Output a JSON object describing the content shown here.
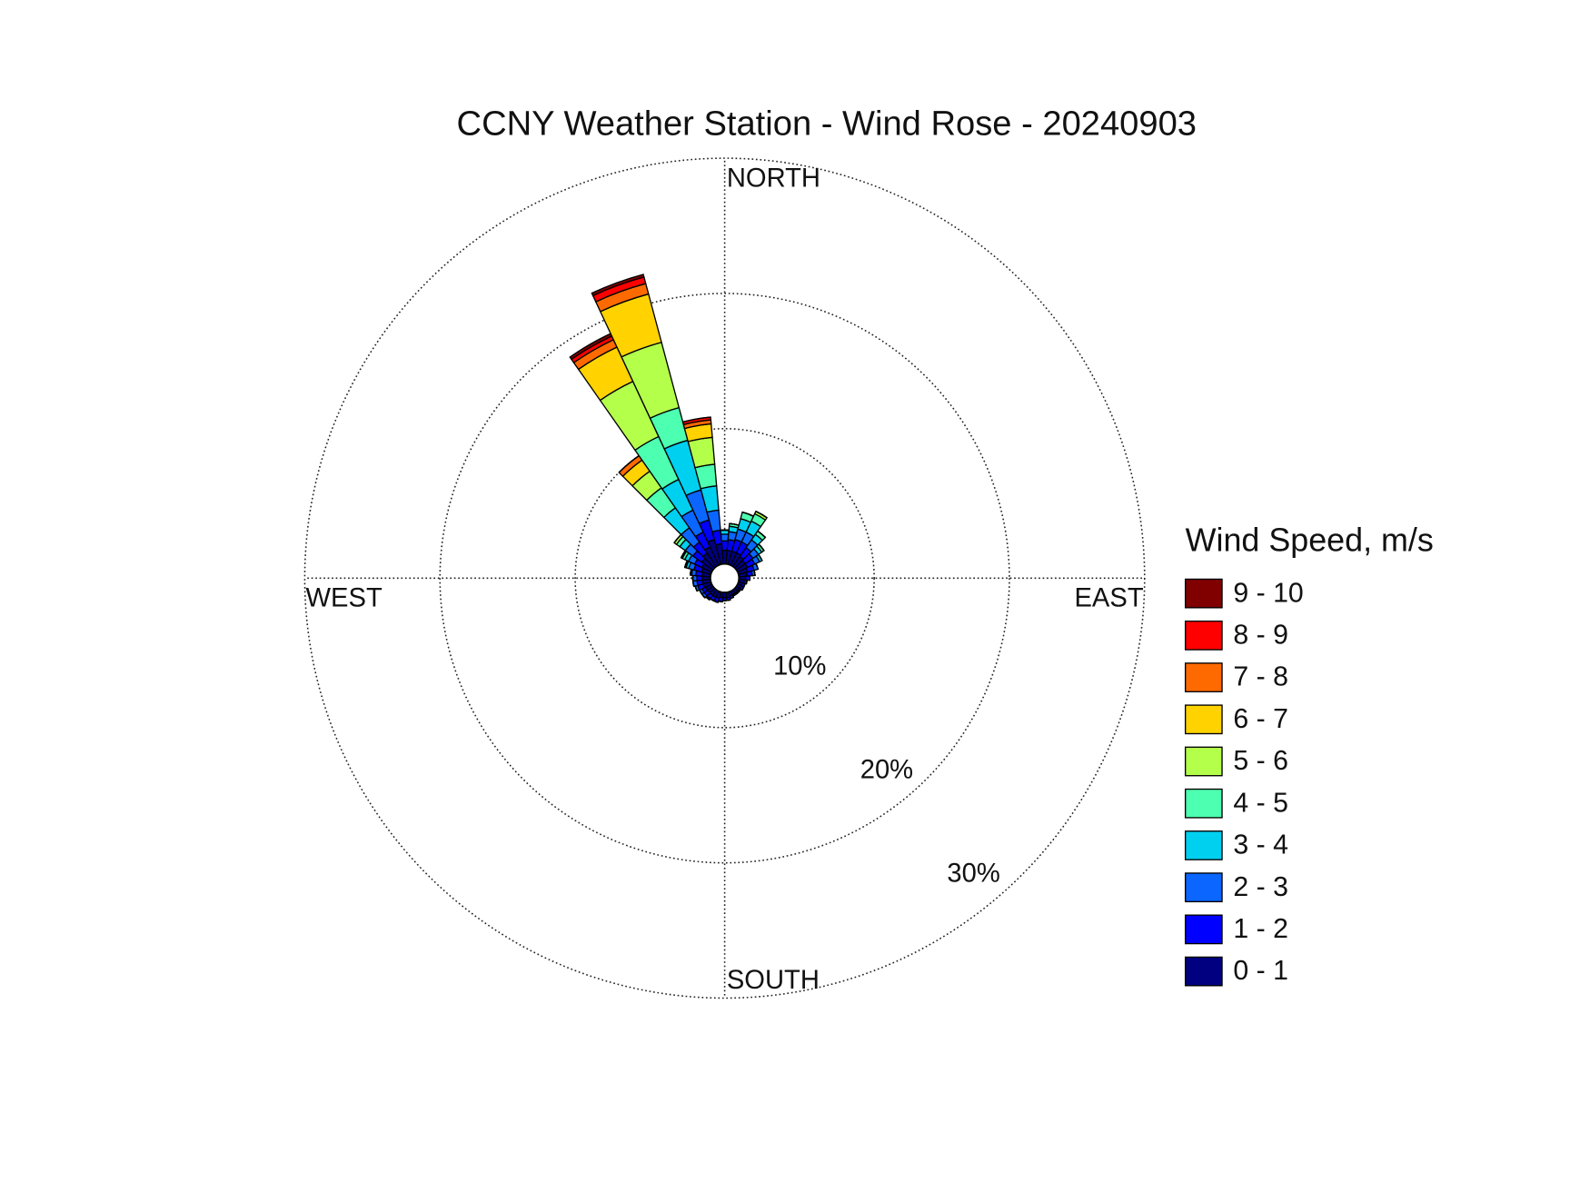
{
  "chart_data": {
    "type": "windrose",
    "title": "CCNY Weather Station - Wind Rose - 20240903",
    "compass_labels": {
      "north": "NORTH",
      "east": "EAST",
      "south": "SOUTH",
      "west": "WEST"
    },
    "legend_title": "Wind Speed, m/s",
    "directions": [
      0,
      10,
      20,
      30,
      40,
      50,
      60,
      70,
      80,
      90,
      100,
      110,
      120,
      130,
      140,
      150,
      160,
      170,
      180,
      190,
      200,
      210,
      220,
      230,
      240,
      250,
      260,
      270,
      280,
      290,
      300,
      310,
      320,
      330,
      340,
      350
    ],
    "rlim": [
      0,
      30
    ],
    "rticks": [
      {
        "value": 10,
        "label": "10%"
      },
      {
        "value": 20,
        "label": "20%"
      },
      {
        "value": 30,
        "label": "30%"
      }
    ],
    "grid": true,
    "series": [
      {
        "name": "0 - 1",
        "color": "#000080",
        "values": [
          1.0,
          1.0,
          1.0,
          1.0,
          0.9,
          0.8,
          0.8,
          0.7,
          0.6,
          0.5,
          0.4,
          0.3,
          0.3,
          0.3,
          0.3,
          0.3,
          0.3,
          0.4,
          0.4,
          0.4,
          0.5,
          0.5,
          0.5,
          0.5,
          0.5,
          0.6,
          0.6,
          0.6,
          0.6,
          0.7,
          0.8,
          1.0,
          1.2,
          1.5,
          1.9,
          1.5
        ]
      },
      {
        "name": "1 - 2",
        "color": "#0000ff",
        "values": [
          0.7,
          0.8,
          0.9,
          0.9,
          0.8,
          0.7,
          0.6,
          0.5,
          0.4,
          0.3,
          0.2,
          0.2,
          0.2,
          0.1,
          0.1,
          0.1,
          0.2,
          0.2,
          0.2,
          0.3,
          0.3,
          0.3,
          0.3,
          0.3,
          0.3,
          0.4,
          0.4,
          0.4,
          0.5,
          0.6,
          0.6,
          0.8,
          1.0,
          1.2,
          1.5,
          1.0
        ]
      },
      {
        "name": "2 - 3",
        "color": "#0a66ff",
        "values": [
          0.5,
          0.6,
          0.8,
          0.8,
          0.7,
          0.5,
          0.4,
          0.3,
          0.2,
          0,
          0,
          0,
          0,
          0,
          0,
          0,
          0,
          0,
          0,
          0,
          0,
          0,
          0.1,
          0.2,
          0.2,
          0.2,
          0.3,
          0.3,
          0.3,
          0.4,
          0.5,
          0.7,
          1.3,
          1.8,
          2.3,
          1.5
        ]
      },
      {
        "name": "3 - 4",
        "color": "#00d0f0",
        "values": [
          0.3,
          0.4,
          0.8,
          0.9,
          0.5,
          0.3,
          0.2,
          0,
          0,
          0,
          0,
          0,
          0,
          0,
          0,
          0,
          0,
          0,
          0,
          0,
          0,
          0,
          0,
          0,
          0,
          0,
          0,
          0,
          0.1,
          0.2,
          0.3,
          0.5,
          1.8,
          2.5,
          3.8,
          1.8
        ]
      },
      {
        "name": "4 - 5",
        "color": "#4dffb0",
        "values": [
          0,
          0.2,
          0.5,
          0.6,
          0.3,
          0.2,
          0,
          0,
          0,
          0,
          0,
          0,
          0,
          0,
          0,
          0,
          0,
          0,
          0,
          0,
          0,
          0,
          0,
          0,
          0,
          0,
          0,
          0,
          0,
          0.1,
          0.2,
          0.3,
          1.8,
          3.5,
          2.5,
          1.6
        ]
      },
      {
        "name": "5 - 6",
        "color": "#b4ff4a",
        "values": [
          0,
          0,
          0,
          0.2,
          0,
          0,
          0,
          0,
          0,
          0,
          0,
          0,
          0,
          0,
          0,
          0,
          0,
          0,
          0,
          0,
          0,
          0,
          0,
          0,
          0,
          0,
          0,
          0,
          0,
          0,
          0.1,
          0.2,
          1.5,
          4.5,
          5.0,
          2.0
        ]
      },
      {
        "name": "6 - 7",
        "color": "#ffd200",
        "values": [
          0,
          0,
          0,
          0,
          0,
          0,
          0,
          0,
          0,
          0,
          0,
          0,
          0,
          0,
          0,
          0,
          0,
          0,
          0,
          0,
          0,
          0,
          0,
          0,
          0,
          0,
          0,
          0,
          0,
          0,
          0,
          0,
          1.0,
          2.8,
          3.7,
          1.0
        ]
      },
      {
        "name": "7 - 8",
        "color": "#ff6a00",
        "values": [
          0,
          0,
          0,
          0,
          0,
          0,
          0,
          0,
          0,
          0,
          0,
          0,
          0,
          0,
          0,
          0,
          0,
          0,
          0,
          0,
          0,
          0,
          0,
          0,
          0,
          0,
          0,
          0,
          0,
          0,
          0,
          0,
          0.4,
          0.6,
          0.8,
          0.3
        ]
      },
      {
        "name": "8 - 9",
        "color": "#ff0000",
        "values": [
          0,
          0,
          0,
          0,
          0,
          0,
          0,
          0,
          0,
          0,
          0,
          0,
          0,
          0,
          0,
          0,
          0,
          0,
          0,
          0,
          0,
          0,
          0,
          0,
          0,
          0,
          0,
          0,
          0,
          0,
          0,
          0,
          0,
          0.3,
          0.5,
          0.2
        ]
      },
      {
        "name": "9 - 10",
        "color": "#800000",
        "values": [
          0,
          0,
          0,
          0,
          0,
          0,
          0,
          0,
          0,
          0,
          0,
          0,
          0,
          0,
          0,
          0,
          0,
          0,
          0,
          0,
          0,
          0,
          0,
          0,
          0,
          0,
          0,
          0,
          0,
          0,
          0,
          0,
          0,
          0.2,
          0.2,
          0
        ]
      }
    ]
  }
}
